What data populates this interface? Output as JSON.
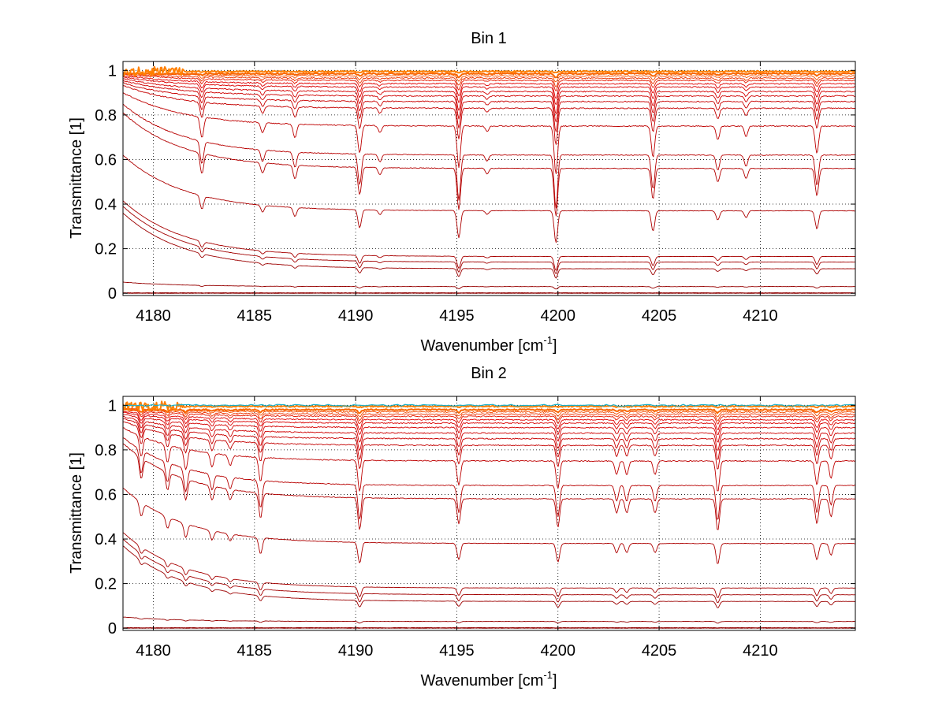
{
  "chart_data": [
    {
      "type": "line",
      "title": "Bin 1",
      "xlabel": "Wavenumber [cm",
      "xlabel_sup": "-1",
      "xlabel_end": "]",
      "ylabel": "Transmittance [1]",
      "xlim": [
        4178.5,
        4214.7
      ],
      "ylim": [
        -0.01,
        1.04
      ],
      "xticks": [
        4180,
        4185,
        4190,
        4195,
        4200,
        4205,
        4210
      ],
      "yticks": [
        0,
        0.2,
        0.4,
        0.6,
        0.8,
        1
      ],
      "grid": true,
      "series_count": 21,
      "series_baselines": [
        0.0,
        0.002,
        0.03,
        0.11,
        0.14,
        0.165,
        0.37,
        0.56,
        0.62,
        0.75,
        0.83,
        0.86,
        0.885,
        0.905,
        0.925,
        0.94,
        0.955,
        0.965,
        0.975,
        0.985,
        0.995
      ],
      "absorption_lines": [
        {
          "x": 4182.4,
          "depth": 0.3
        },
        {
          "x": 4185.4,
          "depth": 0.15
        },
        {
          "x": 4187.0,
          "depth": 0.2
        },
        {
          "x": 4190.2,
          "depth": 0.4
        },
        {
          "x": 4191.2,
          "depth": 0.1
        },
        {
          "x": 4195.1,
          "depth": 0.6
        },
        {
          "x": 4196.5,
          "depth": 0.08
        },
        {
          "x": 4199.9,
          "depth": 0.7
        },
        {
          "x": 4204.7,
          "depth": 0.45
        },
        {
          "x": 4207.9,
          "depth": 0.2
        },
        {
          "x": 4209.3,
          "depth": 0.15
        },
        {
          "x": 4212.8,
          "depth": 0.4
        }
      ]
    },
    {
      "type": "line",
      "title": "Bin 2",
      "xlabel": "Wavenumber [cm",
      "xlabel_sup": "-1",
      "xlabel_end": "]",
      "ylabel": "Transmittance [1]",
      "xlim": [
        4178.5,
        4214.7
      ],
      "ylim": [
        -0.01,
        1.04
      ],
      "xticks": [
        4180,
        4185,
        4190,
        4195,
        4200,
        4205,
        4210
      ],
      "yticks": [
        0,
        0.2,
        0.4,
        0.6,
        0.8,
        1
      ],
      "grid": true,
      "series_count": 21,
      "series_baselines": [
        0.0,
        0.002,
        0.03,
        0.12,
        0.15,
        0.18,
        0.38,
        0.58,
        0.64,
        0.75,
        0.82,
        0.85,
        0.875,
        0.9,
        0.92,
        0.935,
        0.95,
        0.96,
        0.97,
        0.98,
        0.995
      ],
      "absorption_lines": [
        {
          "x": 4179.4,
          "depth": 0.3
        },
        {
          "x": 4180.7,
          "depth": 0.25
        },
        {
          "x": 4181.6,
          "depth": 0.3
        },
        {
          "x": 4182.9,
          "depth": 0.2
        },
        {
          "x": 4183.8,
          "depth": 0.15
        },
        {
          "x": 4185.3,
          "depth": 0.35
        },
        {
          "x": 4190.2,
          "depth": 0.45
        },
        {
          "x": 4195.1,
          "depth": 0.35
        },
        {
          "x": 4200.0,
          "depth": 0.4
        },
        {
          "x": 4202.9,
          "depth": 0.2
        },
        {
          "x": 4203.4,
          "depth": 0.2
        },
        {
          "x": 4204.8,
          "depth": 0.2
        },
        {
          "x": 4207.9,
          "depth": 0.45
        },
        {
          "x": 4212.8,
          "depth": 0.35
        },
        {
          "x": 4213.5,
          "depth": 0.25
        }
      ]
    }
  ],
  "colors": {
    "curve_low": "#8b0000",
    "curve_mid": "#e00000",
    "curve_high": "#ff7f00",
    "accent_cyan": "#1ab0c8",
    "grid": "#000000",
    "axis": "#000000"
  }
}
